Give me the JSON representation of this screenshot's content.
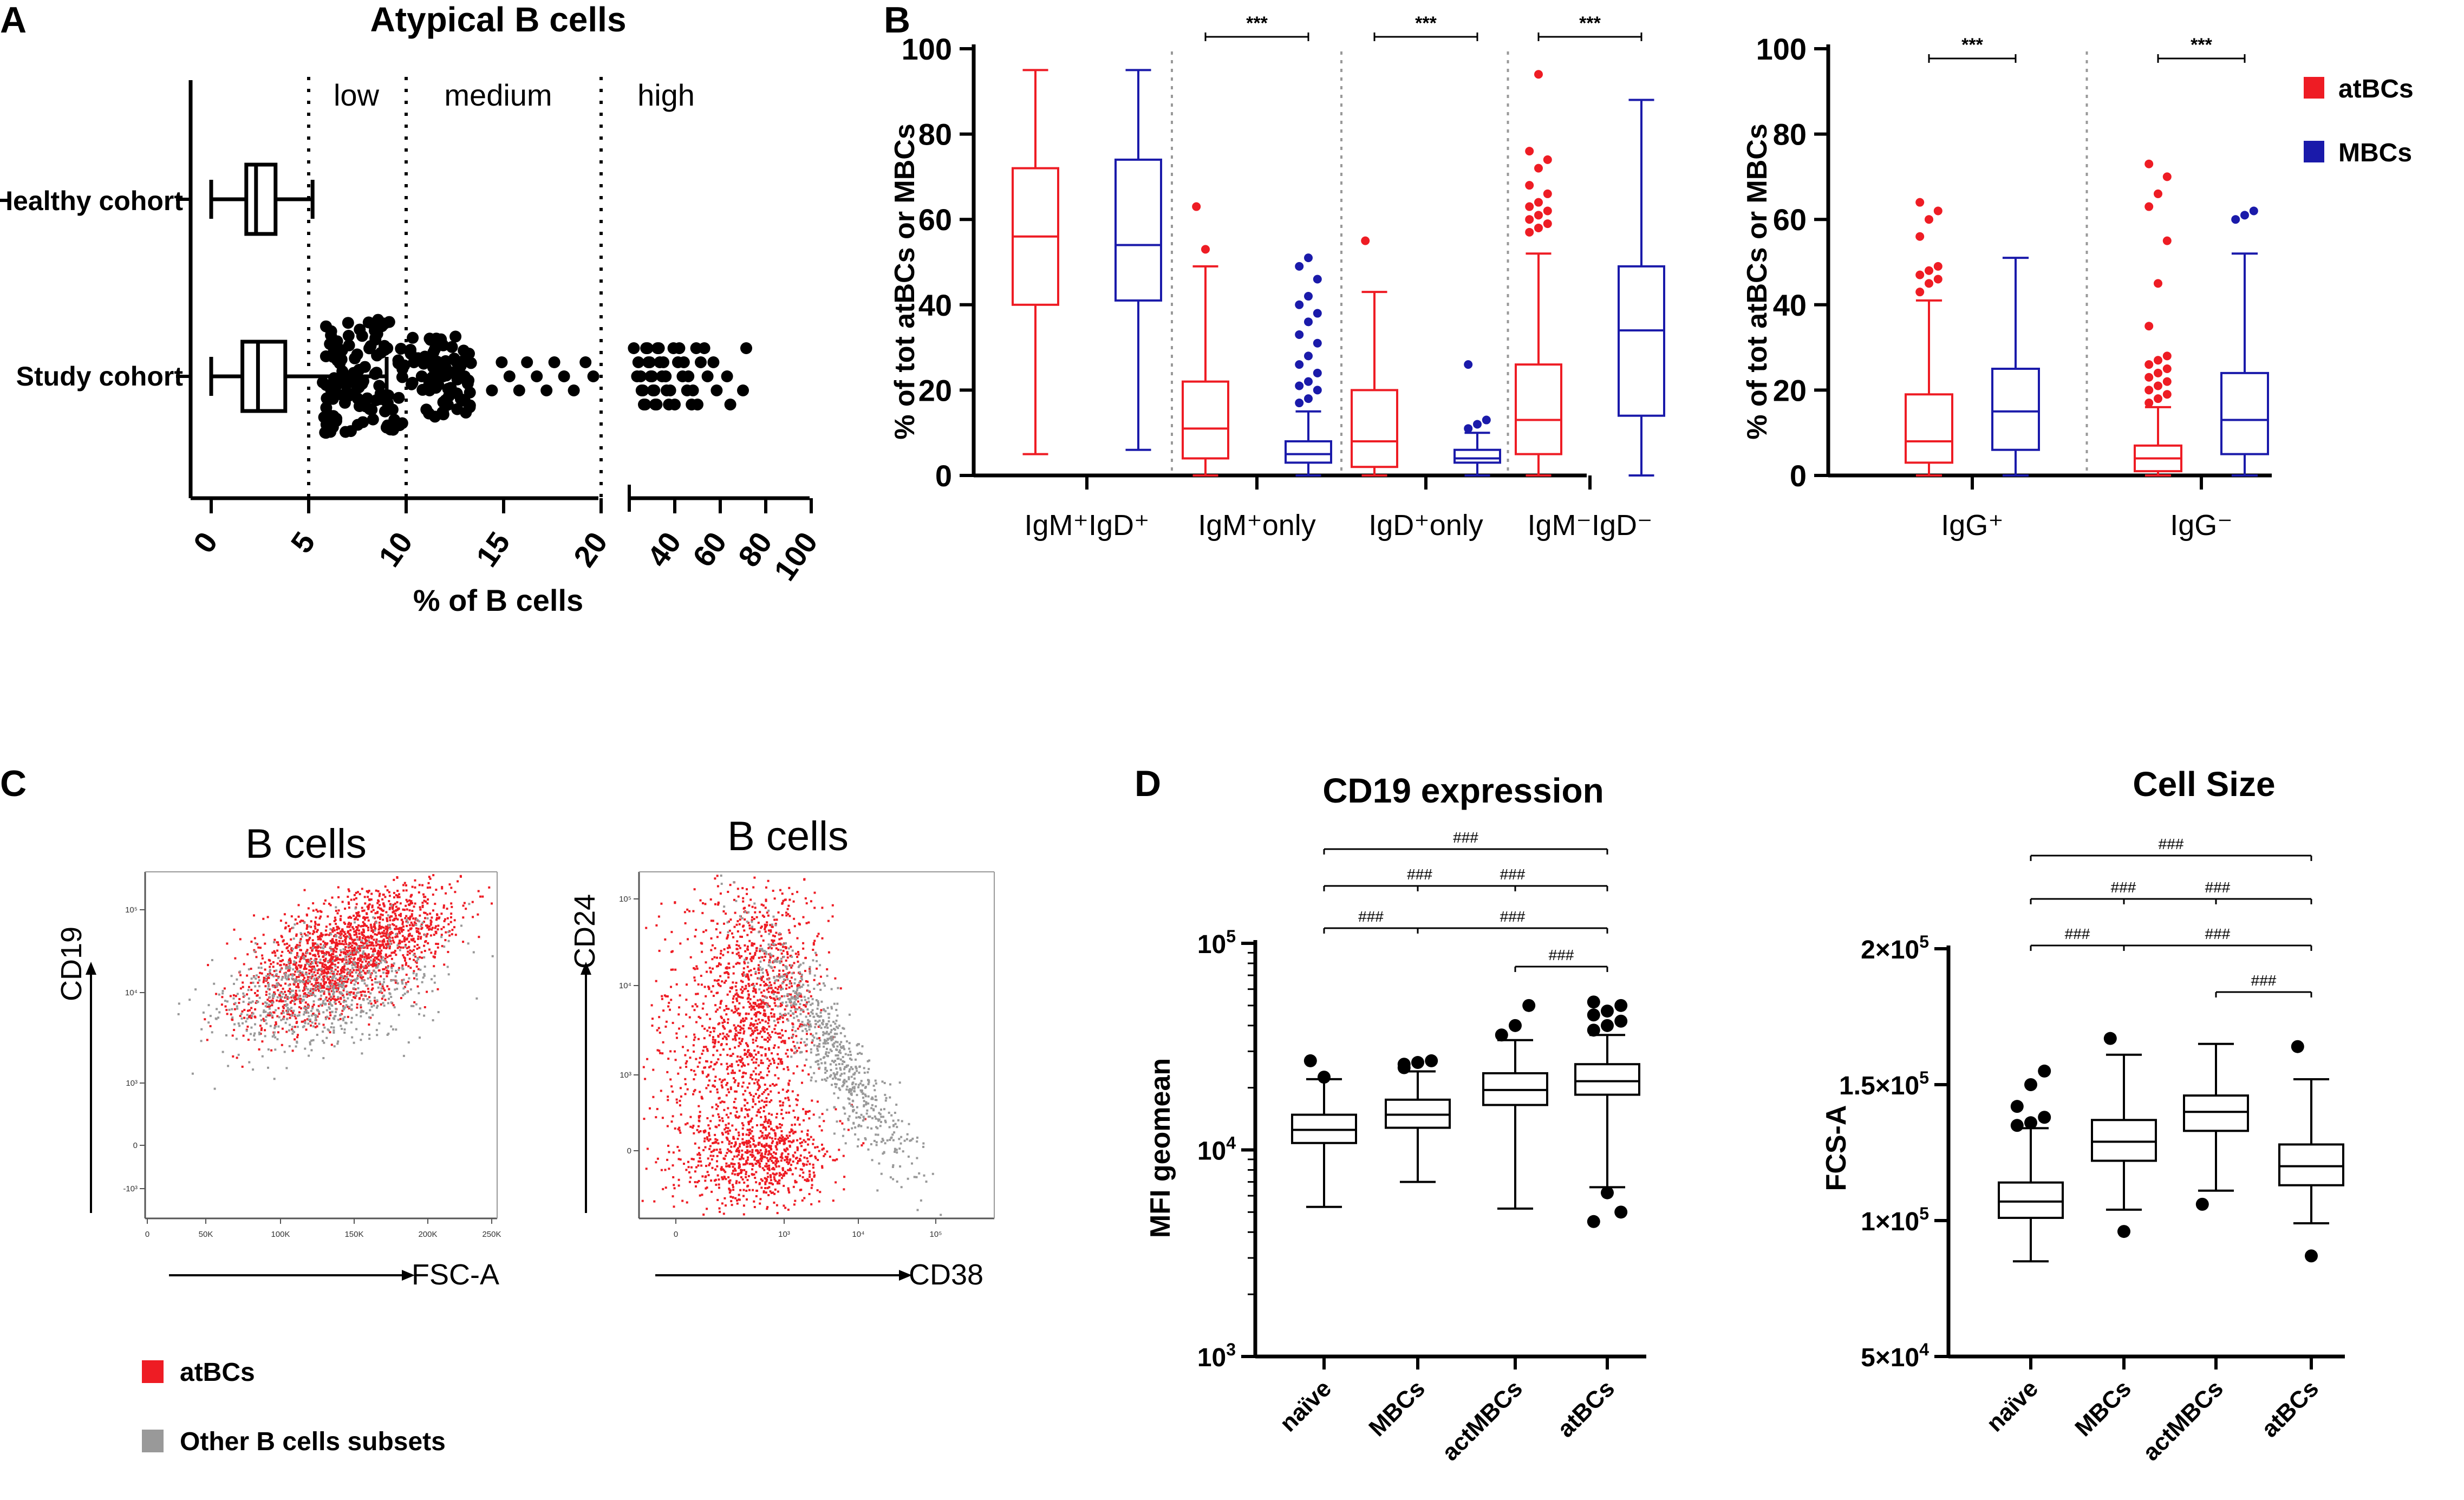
{
  "panel_letters": {
    "a": "A",
    "b": "B",
    "c": "C",
    "d": "D"
  },
  "chart_data": [
    {
      "id": "A",
      "type": "box-beeswarm",
      "title": "Atypical B cells",
      "xlabel": "% of B cells",
      "categories": [
        "Healthy cohort",
        "Study cohort"
      ],
      "region_labels": [
        "low",
        "medium",
        "high"
      ],
      "thresholds": [
        5,
        10,
        20
      ],
      "xticks_left": [
        0,
        5,
        10,
        15,
        20
      ],
      "xticks_right": [
        40,
        60,
        80,
        100
      ],
      "boxes": [
        {
          "name": "Healthy cohort",
          "min": 0,
          "q1": 1.8,
          "median": 2.3,
          "q3": 3.3,
          "max": 5.2
        },
        {
          "name": "Study cohort",
          "min": 0,
          "q1": 1.6,
          "median": 2.4,
          "q3": 3.8,
          "max": 9.0
        }
      ],
      "medium_points": [
        10.4,
        10.8,
        11.2,
        11.5,
        11.9,
        12.3,
        12.6,
        13.0,
        14.4,
        14.9,
        15.3,
        15.8,
        16.2,
        16.7,
        17.2,
        17.6,
        18.1,
        18.6,
        19.2,
        19.6
      ],
      "high_points": [
        22,
        24,
        25,
        26,
        27,
        28,
        29,
        30,
        31,
        32,
        33,
        35,
        36,
        38,
        40,
        42,
        44,
        46,
        48,
        50,
        53,
        57,
        63,
        70
      ]
    },
    {
      "id": "B1",
      "type": "box",
      "ylabel": "% of tot atBCs or MBCs",
      "ylim": [
        0,
        100
      ],
      "yticks": [
        0,
        20,
        40,
        60,
        80,
        100
      ],
      "groups": [
        {
          "label": "IgM⁺IgD⁺",
          "sig": "",
          "atBCs": {
            "min": 5,
            "q1": 40,
            "median": 56,
            "q3": 72,
            "max": 95,
            "outliers": []
          },
          "MBCs": {
            "min": 6,
            "q1": 41,
            "median": 54,
            "q3": 74,
            "max": 95,
            "outliers": []
          }
        },
        {
          "label": "IgM⁺only",
          "sig": "***",
          "atBCs": {
            "min": 0,
            "q1": 4,
            "median": 11,
            "q3": 22,
            "max": 49,
            "outliers": [
              63,
              53
            ]
          },
          "MBCs": {
            "min": 0,
            "q1": 3,
            "median": 5,
            "q3": 8,
            "max": 15,
            "outliers": [
              17,
              18,
              20,
              21,
              22,
              24,
              26,
              28,
              31,
              33,
              36,
              38,
              40,
              42,
              46,
              49,
              51
            ]
          }
        },
        {
          "label": "IgD⁺only",
          "sig": "***",
          "atBCs": {
            "min": 0,
            "q1": 2,
            "median": 8,
            "q3": 20,
            "max": 43,
            "outliers": [
              55
            ]
          },
          "MBCs": {
            "min": 0,
            "q1": 3,
            "median": 4,
            "q3": 6,
            "max": 10,
            "outliers": [
              11,
              12,
              13,
              26
            ]
          }
        },
        {
          "label": "IgM⁻IgD⁻",
          "sig": "***",
          "atBCs": {
            "min": 0,
            "q1": 5,
            "median": 13,
            "q3": 26,
            "max": 52,
            "outliers": [
              57,
              58,
              59,
              60,
              61,
              62,
              63,
              64,
              66,
              68,
              72,
              74,
              76,
              94
            ]
          },
          "MBCs": {
            "min": 0,
            "q1": 14,
            "median": 34,
            "q3": 49,
            "max": 88,
            "outliers": []
          }
        }
      ]
    },
    {
      "id": "B2",
      "type": "box",
      "ylabel": "% of tot atBCs or MBCs",
      "ylim": [
        0,
        100
      ],
      "yticks": [
        0,
        20,
        40,
        60,
        80,
        100
      ],
      "legend": [
        {
          "name": "atBCs",
          "color": "#ee1c24"
        },
        {
          "name": "MBCs",
          "color": "#1a1aaa"
        }
      ],
      "groups": [
        {
          "label": "IgG⁺",
          "sig": "***",
          "atBCs": {
            "min": 0,
            "q1": 3,
            "median": 8,
            "q3": 19,
            "max": 41,
            "outliers": [
              43,
              45,
              46,
              47,
              48,
              49,
              56,
              60,
              62,
              64
            ]
          },
          "MBCs": {
            "min": 0,
            "q1": 6,
            "median": 15,
            "q3": 25,
            "max": 51,
            "outliers": []
          }
        },
        {
          "label": "IgG⁻",
          "sig": "***",
          "atBCs": {
            "min": 0,
            "q1": 1,
            "median": 4,
            "q3": 7,
            "max": 16,
            "outliers": [
              17,
              18,
              19,
              20,
              21,
              22,
              23,
              24,
              25,
              26,
              27,
              28,
              35,
              45,
              55,
              63,
              66,
              70,
              73
            ]
          },
          "MBCs": {
            "min": 0,
            "q1": 5,
            "median": 13,
            "q3": 24,
            "max": 52,
            "outliers": [
              60,
              61,
              62
            ]
          }
        }
      ]
    },
    {
      "id": "C",
      "type": "scatter",
      "legend": [
        {
          "name": "atBCs",
          "color": "#ee1c24"
        },
        {
          "name": "Other B cells subsets",
          "color": "#999999"
        }
      ],
      "plots": [
        {
          "title": "B cells",
          "xlabel": "FSC-A",
          "ylabel": "CD19",
          "xticks": [
            "0",
            "50K",
            "100K",
            "150K",
            "200K",
            "250K"
          ],
          "yticks": [
            "-10³",
            "0",
            "10³",
            "10⁴",
            "10⁵"
          ]
        },
        {
          "title": "B cells",
          "xlabel": "CD38",
          "ylabel": "CD24",
          "xticks": [
            "0",
            "10³",
            "10⁴",
            "10⁵"
          ],
          "yticks": [
            "0",
            "10³",
            "10⁴",
            "10⁵"
          ]
        }
      ]
    },
    {
      "id": "D1",
      "type": "box",
      "title": "CD19 expression",
      "ylabel": "MFI geomean",
      "yscale": "log",
      "ylim": [
        1000,
        100000
      ],
      "yticks": [
        1000,
        10000,
        100000
      ],
      "ytick_labels": [
        [
          "10",
          "3"
        ],
        [
          "10",
          "4"
        ],
        [
          "10",
          "5"
        ]
      ],
      "categories": [
        "naïve",
        "MBCs",
        "actMBCs",
        "atBCs"
      ],
      "sig_label": "###",
      "boxes": [
        {
          "min": 5300,
          "q1": 10800,
          "median": 12500,
          "q3": 14800,
          "max": 22000,
          "outliers": [
            27000,
            22500
          ]
        },
        {
          "min": 7000,
          "q1": 12800,
          "median": 14800,
          "q3": 17500,
          "max": 24000,
          "outliers": [
            26000,
            26500,
            27000,
            25000
          ]
        },
        {
          "min": 5200,
          "q1": 16500,
          "median": 19500,
          "q3": 23500,
          "max": 34000,
          "outliers": [
            36000,
            40000,
            50000
          ]
        },
        {
          "min": 6600,
          "q1": 18500,
          "median": 21500,
          "q3": 26000,
          "max": 36000,
          "outliers": [
            38000,
            40000,
            42000,
            45000,
            47000,
            50000,
            52000,
            6200,
            5000,
            4500
          ]
        }
      ]
    },
    {
      "id": "D2",
      "type": "box",
      "title": "Cell Size",
      "ylabel": "FCS-A",
      "ylim": [
        50000,
        200000
      ],
      "yticks": [
        50000,
        100000,
        150000,
        200000
      ],
      "ytick_labels": [
        [
          "5×10",
          "4"
        ],
        [
          "1×10",
          "5"
        ],
        [
          "1.5×10",
          "5"
        ],
        [
          "2×10",
          "5"
        ]
      ],
      "categories": [
        "naïve",
        "MBCs",
        "actMBCs",
        "atBCs"
      ],
      "sig_label": "###",
      "boxes": [
        {
          "min": 85000,
          "q1": 101000,
          "median": 107000,
          "q3": 114000,
          "max": 134000,
          "outliers": [
            135000,
            136000,
            138000,
            142000,
            150000,
            155000
          ]
        },
        {
          "min": 104000,
          "q1": 122000,
          "median": 129000,
          "q3": 137000,
          "max": 161000,
          "outliers": [
            167000,
            96000
          ]
        },
        {
          "min": 111000,
          "q1": 133000,
          "median": 140000,
          "q3": 146000,
          "max": 165000,
          "outliers": [
            106000
          ]
        },
        {
          "min": 99000,
          "q1": 113000,
          "median": 120000,
          "q3": 128000,
          "max": 152000,
          "outliers": [
            164000,
            87000
          ]
        }
      ]
    }
  ]
}
